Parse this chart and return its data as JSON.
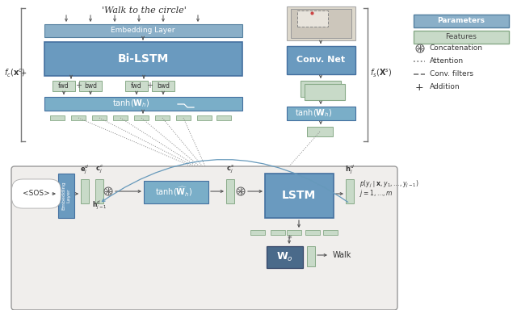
{
  "param_color": "#8aafc8",
  "feat_color": "#c8dac8",
  "lstm_color": "#6a9abf",
  "tanh_color": "#7aaec8",
  "wo_color": "#4a6a8a",
  "embed_color": "#6a9abf",
  "bilstm_color": "#6a9abf",
  "conv_color": "#6a9abf",
  "title": "'Walk to the circle'",
  "legend_params": "Parameters",
  "legend_feats": "Features",
  "legend_concat": "Concatenation",
  "legend_attn": "Attention",
  "legend_conv": "Conv. filters",
  "legend_add": "Addition"
}
